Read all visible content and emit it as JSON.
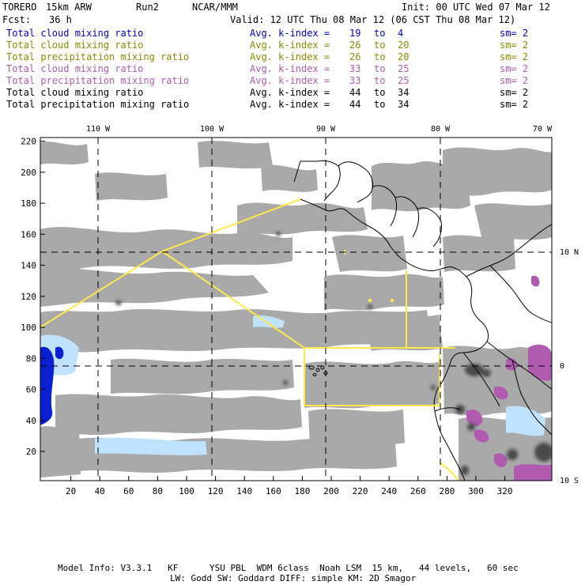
{
  "header": {
    "model": "TORERO",
    "resolution": "15km ARW",
    "run": "Run2",
    "org": "NCAR/MMM",
    "init": "Init: 00 UTC Wed 07 Mar 12",
    "fcst_label": "Fcst:",
    "fcst_value": "36 h",
    "valid": "Valid: 12 UTC Thu 08 Mar 12 (06 CST Thu 08 Mar 12)"
  },
  "legend": [
    {
      "field": "Total cloud mixing ratio",
      "kindex": "Avg. k-index =",
      "from": "19",
      "to": "to",
      "end": "4",
      "sm": "sm= 2",
      "color": "#0000cc"
    },
    {
      "field": "Total cloud mixing ratio",
      "kindex": "Avg. k-index =",
      "from": "26",
      "to": "to",
      "end": "20",
      "sm": "sm= 2",
      "color": "#8a8a00"
    },
    {
      "field": "Total precipitation mixing ratio",
      "kindex": "Avg. k-index =",
      "from": "26",
      "to": "to",
      "end": "20",
      "sm": "sm= 2",
      "color": "#8a8a00"
    },
    {
      "field": "Total cloud mixing ratio",
      "kindex": "Avg. k-index =",
      "from": "33",
      "to": "to",
      "end": "25",
      "sm": "sm= 2",
      "color": "#b05ab0"
    },
    {
      "field": "Total precipitation mixing ratio",
      "kindex": "Avg. k-index =",
      "from": "33",
      "to": "to",
      "end": "25",
      "sm": "sm= 2",
      "color": "#b05ab0"
    },
    {
      "field": "Total cloud mixing ratio",
      "kindex": "Avg. k-index =",
      "from": "44",
      "to": "to",
      "end": "34",
      "sm": "sm= 2",
      "color": "#000000"
    },
    {
      "field": "Total precipitation mixing ratio",
      "kindex": "Avg. k-index =",
      "from": "44",
      "to": "to",
      "end": "34",
      "sm": "sm= 2",
      "color": "#000000"
    }
  ],
  "map": {
    "lon_labels": [
      "110 W",
      "100 W",
      "90 W",
      "80 W",
      "70 W"
    ],
    "lat_labels": [
      "10 N",
      "0",
      "10 S"
    ],
    "x_ticks": [
      "20",
      "40",
      "60",
      "80",
      "100",
      "120",
      "140",
      "160",
      "180",
      "200",
      "220",
      "240",
      "260",
      "280",
      "300",
      "320"
    ],
    "y_ticks": [
      "20",
      "40",
      "60",
      "80",
      "100",
      "120",
      "140",
      "160",
      "180",
      "200",
      "220"
    ],
    "colors": {
      "cloud_gray": "#a9a9a9",
      "cloud_dark": "#4a4a4a",
      "cloud_blue_light": "#bfe3ff",
      "cloud_blue_dark": "#0a1fd0",
      "cloud_purple": "#b05ab0",
      "cloud_purple_light": "#e3c8e8",
      "boundary_yellow": "#ffe94a",
      "coast": "#000000",
      "grid": "#000000"
    }
  },
  "footer": {
    "line1": "Model Info: V3.3.1   KF      YSU PBL  WDM 6class  Noah LSM  15 km,   44 levels,   60 sec",
    "line2": "LW: Godd SW: Goddard DIFF: simple KM: 2D Smagor"
  }
}
